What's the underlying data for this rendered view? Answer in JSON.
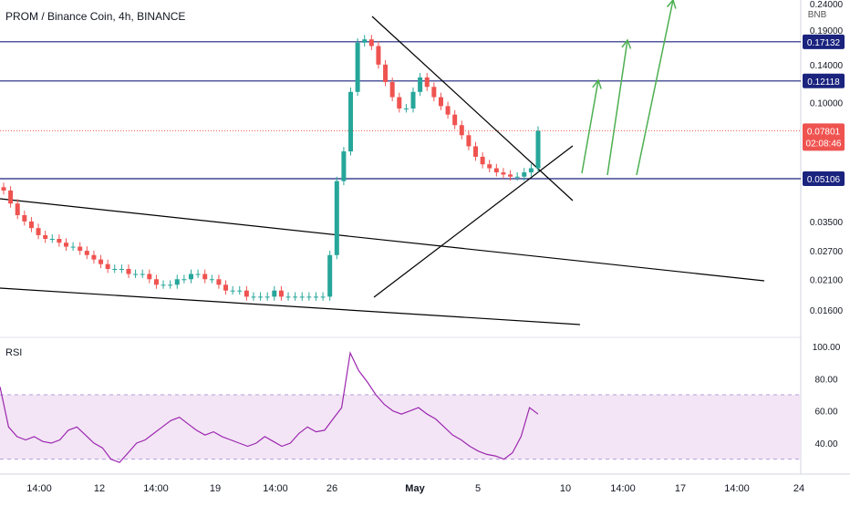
{
  "header": {
    "symbol_title": "PROM / Binance Coin, 4h, BINANCE"
  },
  "price_axis": {
    "currency": "BNB",
    "ticks": [
      "0.24000",
      "0.19000",
      "0.14000",
      "0.10000",
      "0.03500",
      "0.02700",
      "0.02100",
      "0.01600"
    ],
    "line_labels": [
      "0.17132",
      "0.12118",
      "0.05106"
    ],
    "last_price": "0.07801",
    "countdown": "02:08:46"
  },
  "rsi": {
    "label": "RSI",
    "ticks": [
      "100.00",
      "80.00",
      "60.00",
      "40.00"
    ],
    "band": [
      30,
      70
    ],
    "last_value": 58
  },
  "time_axis": {
    "labels": [
      "14:00",
      "12",
      "14:00",
      "19",
      "14:00",
      "26",
      "May",
      "5",
      "10",
      "14:00",
      "17",
      "14:00",
      "24"
    ]
  },
  "colors": {
    "up": "#26a69a",
    "down": "#ef5350",
    "level_line": "#1a237e",
    "level_label_bg": "#1a237e",
    "trendline": "#000000",
    "arrow": "#4caf50",
    "last_price": "#ef5350",
    "rsi_line": "#9c27b0",
    "rsi_band_fill": "#f3e5f5"
  },
  "chart_data": [
    {
      "type": "candlestick",
      "title": "PROM / Binance Coin, 4h, BINANCE",
      "y_scale": "log",
      "y_unit": "BNB",
      "y_ticks": [
        0.24,
        0.19,
        0.14,
        0.1,
        0.035,
        0.027,
        0.021,
        0.016
      ],
      "x_labels": [
        "14:00",
        "12",
        "14:00",
        "19",
        "14:00",
        "26",
        "May",
        "5",
        "10",
        "14:00",
        "17",
        "14:00",
        "24"
      ],
      "close_series_approx": [
        0.046,
        0.041,
        0.037,
        0.035,
        0.033,
        0.031,
        0.03,
        0.03,
        0.029,
        0.028,
        0.028,
        0.027,
        0.026,
        0.025,
        0.024,
        0.023,
        0.023,
        0.023,
        0.022,
        0.022,
        0.022,
        0.021,
        0.02,
        0.02,
        0.02,
        0.021,
        0.021,
        0.022,
        0.022,
        0.021,
        0.021,
        0.02,
        0.019,
        0.019,
        0.019,
        0.018,
        0.018,
        0.018,
        0.018,
        0.019,
        0.018,
        0.018,
        0.018,
        0.018,
        0.018,
        0.018,
        0.018,
        0.026,
        0.05,
        0.065,
        0.11,
        0.17,
        0.175,
        0.165,
        0.14,
        0.12,
        0.105,
        0.095,
        0.095,
        0.11,
        0.125,
        0.115,
        0.105,
        0.097,
        0.09,
        0.082,
        0.075,
        0.068,
        0.062,
        0.058,
        0.056,
        0.054,
        0.053,
        0.052,
        0.052,
        0.054,
        0.056,
        0.078
      ],
      "horizontal_levels": [
        0.17132,
        0.12118,
        0.05106
      ],
      "last_price": 0.07801
    },
    {
      "type": "line",
      "title": "RSI",
      "y_ticks": [
        100,
        80,
        60,
        40
      ],
      "band": [
        30,
        70
      ],
      "values_approx": [
        75,
        50,
        44,
        42,
        44,
        41,
        40,
        42,
        48,
        50,
        45,
        40,
        37,
        30,
        28,
        34,
        40,
        42,
        46,
        50,
        54,
        56,
        52,
        48,
        45,
        47,
        44,
        42,
        40,
        38,
        40,
        44,
        41,
        38,
        40,
        46,
        50,
        47,
        48,
        55,
        62,
        96,
        85,
        78,
        70,
        64,
        60,
        58,
        60,
        62,
        58,
        55,
        50,
        45,
        42,
        38,
        35,
        33,
        32,
        30,
        34,
        44,
        62,
        58
      ]
    }
  ]
}
